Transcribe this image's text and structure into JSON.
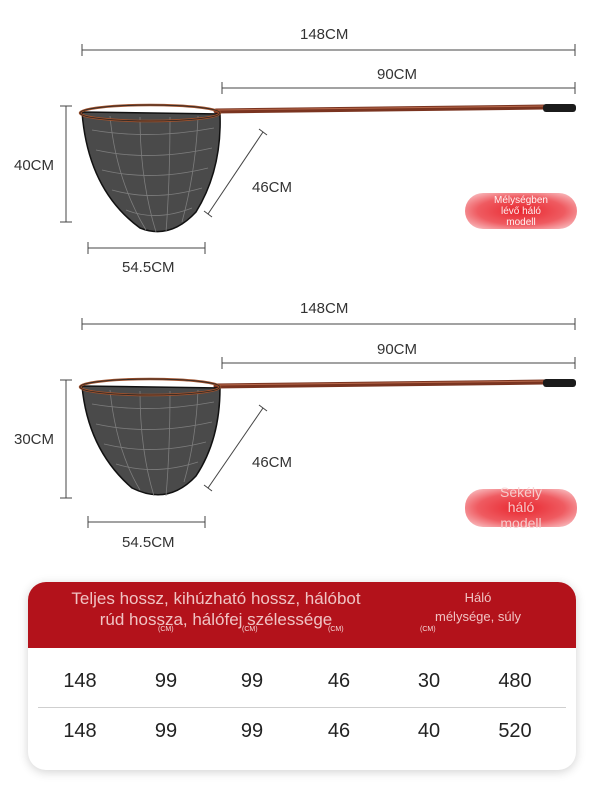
{
  "deep_model": {
    "total_length": "148CM",
    "handle_length": "90CM",
    "depth": "40CM",
    "frame_diagonal": "46CM",
    "head_width": "54.5CM",
    "badge_lines": [
      "Mélységben",
      "lévő háló",
      "modell"
    ]
  },
  "shallow_model": {
    "total_length": "148CM",
    "handle_length": "90CM",
    "depth": "30CM",
    "frame_diagonal": "46CM",
    "head_width": "54.5CM",
    "badge_lines": [
      "Sekély",
      "háló",
      "modell"
    ]
  },
  "table": {
    "header_left_line1": "Teljes hossz, kihúzható hossz, hálóbot",
    "header_left_line2": "rúd hossza, hálófej szélessége",
    "header_right_line1": "Háló",
    "header_right_line2": "mélysége, súly",
    "units": [
      "(CM)",
      "(CM)",
      "(CM)",
      "(CM)"
    ],
    "rows": [
      [
        "148",
        "99",
        "99",
        "46",
        "30",
        "480"
      ],
      [
        "148",
        "99",
        "99",
        "46",
        "40",
        "520"
      ]
    ]
  },
  "colors": {
    "accent_red": "#b3121b",
    "handle_brown": "#7a3420",
    "badge_red": "#e8262e"
  }
}
